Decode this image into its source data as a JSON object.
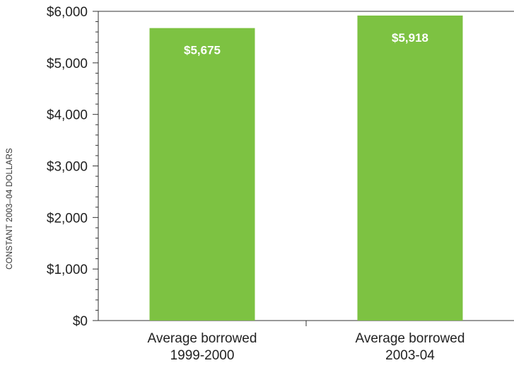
{
  "chart_data": {
    "type": "bar",
    "categories": [
      "Average borrowed 1999-2000",
      "Average borrowed 2003-04"
    ],
    "category_lines": [
      [
        "Average borrowed",
        "1999-2000"
      ],
      [
        "Average borrowed",
        "2003-04"
      ]
    ],
    "values": [
      5675,
      5918
    ],
    "data_labels": [
      "$5,675",
      "$5,918"
    ],
    "ylabel": "CONSTANT 2003–04 DOLLARS",
    "ylim": [
      0,
      6000
    ],
    "yticks": [
      0,
      1000,
      2000,
      3000,
      4000,
      5000,
      6000
    ],
    "ytick_labels": [
      "$0",
      "$1,000",
      "$2,000",
      "$3,000",
      "$4,000",
      "$5,000",
      "$6,000"
    ],
    "minor_ticks_per_major": 5,
    "grid": false,
    "bar_color": "#7dc242"
  }
}
